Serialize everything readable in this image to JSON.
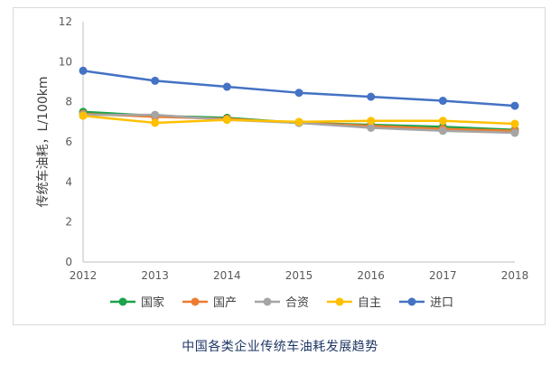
{
  "chart_data": {
    "type": "line",
    "title": "",
    "ylabel": "传统车油耗，L/100km",
    "xlabel": "",
    "ylim": [
      0,
      12
    ],
    "yticks": [
      0,
      2,
      4,
      6,
      8,
      10,
      12
    ],
    "categories": [
      "2012",
      "2013",
      "2014",
      "2015",
      "2016",
      "2017",
      "2018"
    ],
    "legend_position": "bottom",
    "gridlines": false,
    "series": [
      {
        "name": "国家",
        "color": "#1aa34a",
        "values": [
          7.5,
          7.3,
          7.2,
          6.95,
          6.85,
          6.75,
          6.6
        ]
      },
      {
        "name": "国产",
        "color": "#ed7d31",
        "values": [
          7.4,
          7.25,
          7.15,
          6.95,
          6.8,
          6.65,
          6.55
        ]
      },
      {
        "name": "合资",
        "color": "#a5a5a5",
        "values": [
          7.35,
          7.35,
          7.1,
          6.95,
          6.7,
          6.55,
          6.45
        ]
      },
      {
        "name": "自主",
        "color": "#ffc000",
        "values": [
          7.3,
          6.95,
          7.1,
          7.0,
          7.05,
          7.05,
          6.9
        ]
      },
      {
        "name": "进口",
        "color": "#4472c4",
        "values": [
          9.55,
          9.05,
          8.75,
          8.45,
          8.25,
          8.05,
          7.8
        ]
      }
    ]
  },
  "caption": "中国各类企业传统车油耗发展趋势"
}
